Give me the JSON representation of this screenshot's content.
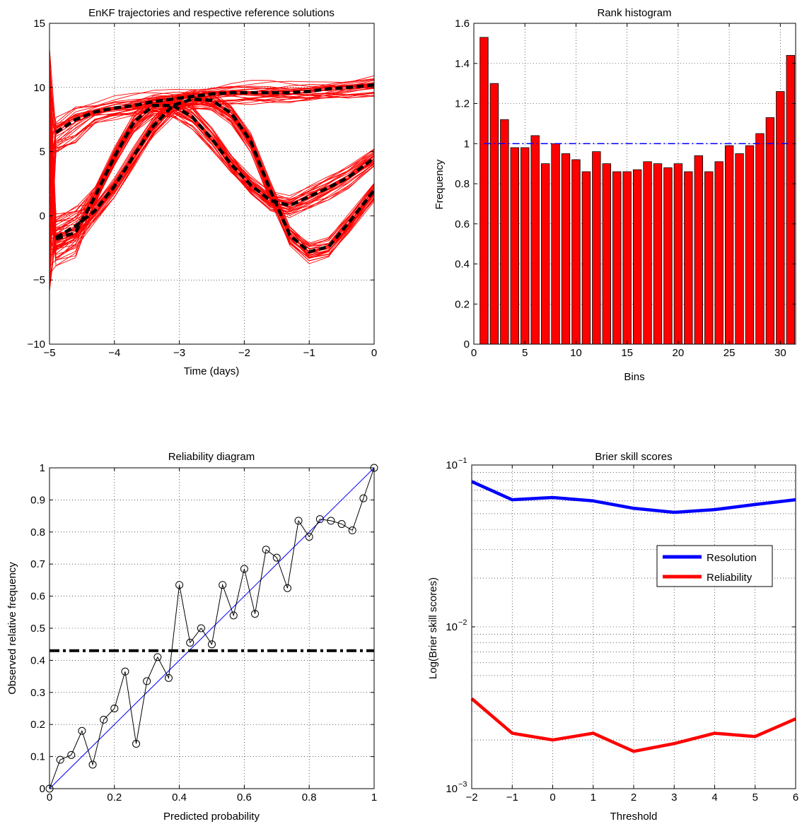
{
  "chart_data": [
    {
      "type": "line",
      "title": "EnKF trajectories and respective reference solutions",
      "xlabel": "Time (days)",
      "ylabel": "",
      "xlim": [
        -5,
        0
      ],
      "ylim": [
        -10,
        15
      ],
      "xticks": [
        "−5",
        "−4",
        "−3",
        "−2",
        "−1",
        "0"
      ],
      "yticks": [
        "−10",
        "−5",
        "0",
        "5",
        "10",
        "15"
      ],
      "grid": true,
      "ensemble_color": "#ff0000",
      "reference_color": "#000000",
      "x": [
        -4.9,
        -4.6,
        -4.3,
        -4.0,
        -3.7,
        -3.4,
        -3.1,
        -2.8,
        -2.5,
        -2.2,
        -1.9,
        -1.6,
        -1.3,
        -1.0,
        -0.7,
        -0.4,
        0.0
      ],
      "series": [
        {
          "values": [
            6.5,
            7.5,
            8.1,
            8.4,
            8.6,
            8.9,
            9.1,
            9.3,
            9.5,
            9.6,
            9.6,
            9.6,
            9.6,
            9.7,
            9.9,
            10.0,
            10.2
          ]
        },
        {
          "values": [
            -1.8,
            -1.3,
            1.5,
            4.6,
            7.3,
            8.6,
            8.6,
            7.7,
            6.0,
            4.0,
            2.4,
            1.2,
            0.8,
            1.5,
            2.2,
            3.0,
            4.5
          ]
        },
        {
          "values": [
            -1.7,
            -0.8,
            0.4,
            2.3,
            4.7,
            7.0,
            8.6,
            9.1,
            9.0,
            8.0,
            5.8,
            2.0,
            -1.5,
            -2.8,
            -2.4,
            -0.6,
            2.0
          ]
        }
      ]
    },
    {
      "type": "bar",
      "title": "Rank histogram",
      "xlabel": "Bins",
      "ylabel": "Frequency",
      "xlim": [
        0,
        31.5
      ],
      "ylim": [
        0,
        1.6
      ],
      "xticks": [
        "0",
        "5",
        "10",
        "15",
        "20",
        "25",
        "30"
      ],
      "yticks": [
        "0",
        "0.2",
        "0.4",
        "0.6",
        "0.8",
        "1",
        "1.2",
        "1.4",
        "1.6"
      ],
      "grid": true,
      "bar_color": "#ff0000",
      "reference_line": 1.0,
      "reference_color": "#0000ff",
      "categories": [
        1,
        2,
        3,
        4,
        5,
        6,
        7,
        8,
        9,
        10,
        11,
        12,
        13,
        14,
        15,
        16,
        17,
        18,
        19,
        20,
        21,
        22,
        23,
        24,
        25,
        26,
        27,
        28,
        29,
        30,
        31
      ],
      "values": [
        1.53,
        1.3,
        1.12,
        0.98,
        0.98,
        1.04,
        0.9,
        1.0,
        0.95,
        0.92,
        0.86,
        0.96,
        0.9,
        0.86,
        0.86,
        0.87,
        0.91,
        0.9,
        0.88,
        0.9,
        0.86,
        0.94,
        0.86,
        0.91,
        0.99,
        0.95,
        0.99,
        1.05,
        1.13,
        1.26,
        1.44
      ]
    },
    {
      "type": "line",
      "title": "Reliability diagram",
      "xlabel": "Predicted probability",
      "ylabel": "Observed relative frequency",
      "xlim": [
        0,
        1
      ],
      "ylim": [
        0,
        1
      ],
      "xticks": [
        "0",
        "0.2",
        "0.4",
        "0.6",
        "0.8",
        "1"
      ],
      "yticks": [
        "0",
        "0.1",
        "0.2",
        "0.3",
        "0.4",
        "0.5",
        "0.6",
        "0.7",
        "0.8",
        "0.9",
        "1"
      ],
      "grid": true,
      "climatology": 0.43,
      "diagonal_color": "#0000ff",
      "x": [
        0,
        0.033,
        0.067,
        0.1,
        0.133,
        0.167,
        0.2,
        0.233,
        0.267,
        0.3,
        0.333,
        0.367,
        0.4,
        0.433,
        0.467,
        0.5,
        0.533,
        0.567,
        0.6,
        0.633,
        0.667,
        0.7,
        0.733,
        0.767,
        0.8,
        0.833,
        0.867,
        0.9,
        0.933,
        0.967,
        1.0
      ],
      "y": [
        0,
        0.09,
        0.105,
        0.18,
        0.075,
        0.215,
        0.25,
        0.365,
        0.14,
        0.335,
        0.41,
        0.345,
        0.635,
        0.455,
        0.5,
        0.45,
        0.635,
        0.54,
        0.685,
        0.545,
        0.745,
        0.72,
        0.625,
        0.835,
        0.785,
        0.84,
        0.835,
        0.825,
        0.805,
        0.905,
        1.0
      ]
    },
    {
      "type": "line",
      "title": "Brier skill scores",
      "xlabel": "Threshold",
      "ylabel": "Log(Brier skill scores)",
      "xlim": [
        -2,
        6
      ],
      "ylim": [
        0.001,
        0.1
      ],
      "yscale": "log",
      "xticks": [
        "−2",
        "−1",
        "0",
        "1",
        "2",
        "3",
        "4",
        "5",
        "6"
      ],
      "grid": true,
      "legend_position": "upper-right",
      "x": [
        -2,
        -1,
        0,
        1,
        2,
        3,
        4,
        5,
        6
      ],
      "series": [
        {
          "name": "Resolution",
          "color": "#0000ff",
          "values": [
            0.079,
            0.061,
            0.063,
            0.06,
            0.054,
            0.051,
            0.053,
            0.057,
            0.061
          ]
        },
        {
          "name": "Reliability",
          "color": "#ff0000",
          "values": [
            0.0036,
            0.0022,
            0.002,
            0.0022,
            0.0017,
            0.0019,
            0.0022,
            0.0021,
            0.0027
          ]
        }
      ]
    }
  ]
}
